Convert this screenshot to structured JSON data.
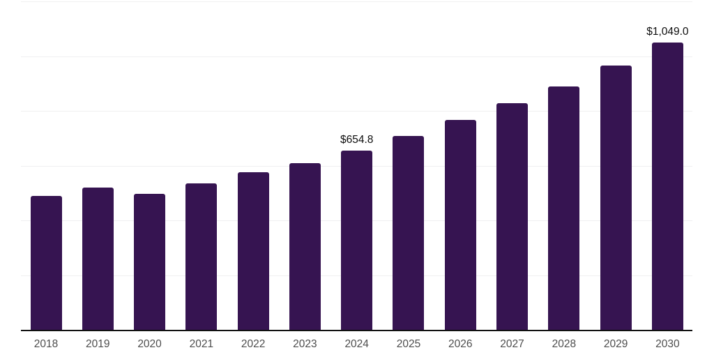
{
  "chart_data": {
    "type": "bar",
    "title": "",
    "categories": [
      "2018",
      "2019",
      "2020",
      "2021",
      "2022",
      "2023",
      "2024",
      "2025",
      "2026",
      "2027",
      "2028",
      "2029",
      "2030"
    ],
    "values": [
      488,
      519,
      498,
      536,
      576,
      608,
      654.8,
      708,
      766,
      828,
      888,
      966,
      1049
    ],
    "data_labels": [
      "",
      "",
      "",
      "",
      "",
      "",
      "$654.8",
      "",
      "",
      "",
      "",
      "",
      "$1,049.0"
    ],
    "xlabel": "",
    "ylabel": "",
    "ylim": [
      0,
      1200
    ],
    "gridline_step": 200,
    "grid": true,
    "legend": false,
    "colors": {
      "bar": "#361451",
      "gridline": "#f0f0f1",
      "axis_line": "#111111",
      "tick_label": "#4d4d4d",
      "data_label": "#0d0d0d",
      "background": "#ffffff"
    }
  }
}
